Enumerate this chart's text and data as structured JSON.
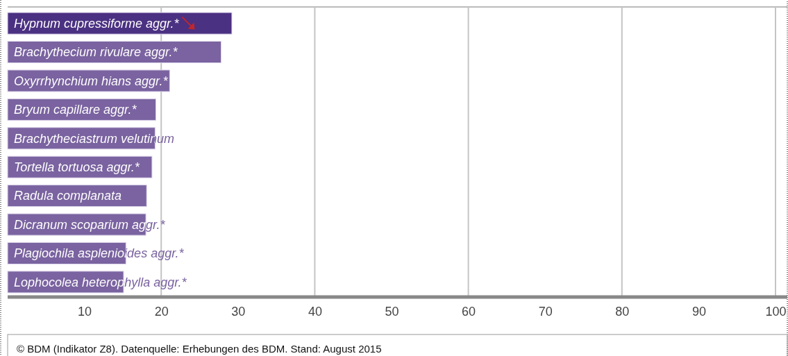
{
  "chart_data": {
    "type": "bar",
    "orientation": "horizontal",
    "categories": [
      "Hypnum cupressiforme aggr.*",
      "Brachythecium rivulare aggr.*",
      "Oxyrrhynchium hians aggr.*",
      "Bryum capillare aggr.*",
      "Brachytheciastrum velutinum",
      "Tortella tortuosa aggr.*",
      "Radula complanata",
      "Dicranum scoparium aggr.*",
      "Plagiochila asplenioides aggr.*",
      "Lophocolea heterophylla aggr.*"
    ],
    "values": [
      29.2,
      27.8,
      21.1,
      19.3,
      19.2,
      18.8,
      18.1,
      18.0,
      15.4,
      15.1
    ],
    "colors": [
      "#4b3182",
      "#7a63a0",
      "#7a63a0",
      "#7a63a0",
      "#7a63a0",
      "#7a63a0",
      "#7a63a0",
      "#7a63a0",
      "#7a63a0",
      "#7a63a0"
    ],
    "xlim": [
      0,
      100
    ],
    "xticks": [
      10,
      20,
      30,
      40,
      50,
      60,
      70,
      80,
      90,
      100
    ],
    "grid": "x",
    "annotations": [
      "©  BDM (Indikator Z8). Datenquelle: Erhebungen des BDM. Stand: August 2015"
    ]
  }
}
